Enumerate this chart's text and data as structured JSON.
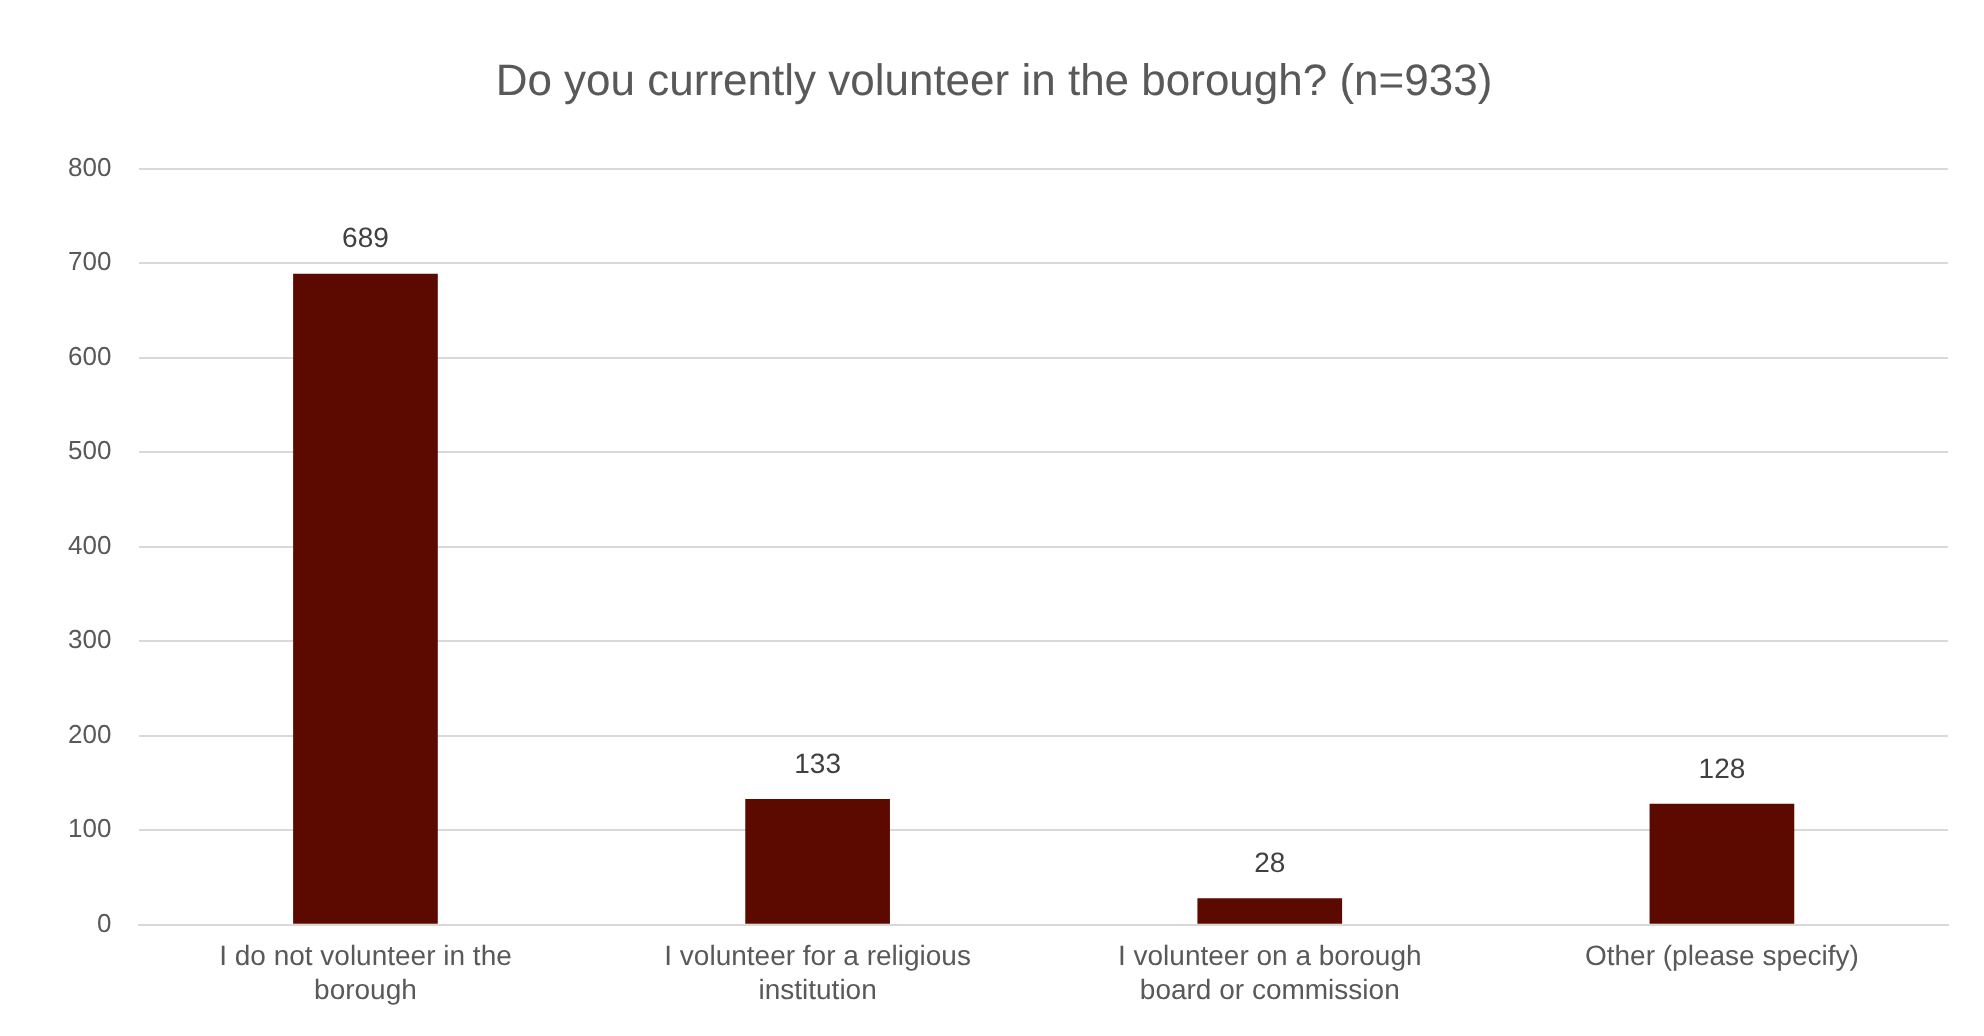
{
  "chart_data": {
    "type": "bar",
    "title": "Do you currently volunteer in the borough? (n=933)",
    "categories": [
      "I do not volunteer in the borough",
      "I volunteer for a religious institution",
      "I volunteer on a borough board or commission",
      "Other (please specify)"
    ],
    "values": [
      689,
      133,
      28,
      128
    ],
    "color": "#5c0a00",
    "ylim": [
      0,
      800
    ],
    "yticks": [
      0,
      100,
      200,
      300,
      400,
      500,
      600,
      700,
      800
    ],
    "grid": "y",
    "data_labels": true
  }
}
